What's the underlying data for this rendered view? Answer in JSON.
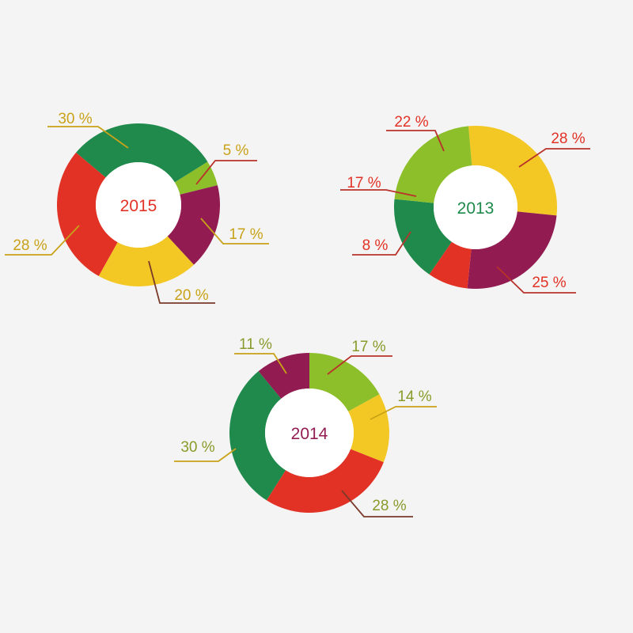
{
  "colors": {
    "background": "#f4f4f4",
    "green": "#1f8a4c",
    "lime": "#8dbf2a",
    "purple": "#921c52",
    "yellow": "#f3c824",
    "red": "#e23225",
    "olive": "#8a9a2a",
    "mustard": "#c9a219"
  },
  "chart_data": [
    {
      "type": "pie",
      "title": "2015",
      "title_color": "#e23225",
      "slices": [
        {
          "value": 5,
          "label": "5 %",
          "color": "#8dbf2a",
          "label_color": "#c9a219",
          "line_color": "#b8322b"
        },
        {
          "value": 17,
          "label": "17 %",
          "color": "#921c52",
          "label_color": "#c9a219",
          "line_color": "#c9a219"
        },
        {
          "value": 20,
          "label": "20 %",
          "color": "#f3c824",
          "label_color": "#c9a219",
          "line_color": "#7a3a2a"
        },
        {
          "value": 28,
          "label": "28 %",
          "color": "#e23225",
          "label_color": "#c9a219",
          "line_color": "#c9a219"
        },
        {
          "value": 30,
          "label": "30 %",
          "color": "#1f8a4c",
          "label_color": "#c9a219",
          "line_color": "#c9a219"
        }
      ]
    },
    {
      "type": "pie",
      "title": "2013",
      "title_color": "#1f8a4c",
      "slices": [
        {
          "value": 28,
          "label": "28 %",
          "color": "#f3c824",
          "label_color": "#e23225",
          "line_color": "#b8322b"
        },
        {
          "value": 25,
          "label": "25 %",
          "color": "#921c52",
          "label_color": "#e23225",
          "line_color": "#b8322b"
        },
        {
          "value": 8,
          "label": "8 %",
          "color": "#e23225",
          "label_color": "#e23225",
          "line_color": "#b8322b"
        },
        {
          "value": 17,
          "label": "17 %",
          "color": "#1f8a4c",
          "label_color": "#e23225",
          "line_color": "#b8322b"
        },
        {
          "value": 22,
          "label": "22 %",
          "color": "#8dbf2a",
          "label_color": "#e23225",
          "line_color": "#b8322b"
        }
      ]
    },
    {
      "type": "pie",
      "title": "2014",
      "title_color": "#921c52",
      "slices": [
        {
          "value": 17,
          "label": "17 %",
          "color": "#8dbf2a",
          "label_color": "#8a9a2a",
          "line_color": "#b8322b"
        },
        {
          "value": 14,
          "label": "14 %",
          "color": "#f3c824",
          "label_color": "#8a9a2a",
          "line_color": "#c9a219"
        },
        {
          "value": 28,
          "label": "28 %",
          "color": "#e23225",
          "label_color": "#8a9a2a",
          "line_color": "#7a3a2a"
        },
        {
          "value": 30,
          "label": "30 %",
          "color": "#1f8a4c",
          "label_color": "#8a9a2a",
          "line_color": "#c9a219"
        },
        {
          "value": 11,
          "label": "11 %",
          "color": "#921c52",
          "label_color": "#8a9a2a",
          "line_color": "#c9a219"
        }
      ]
    }
  ]
}
